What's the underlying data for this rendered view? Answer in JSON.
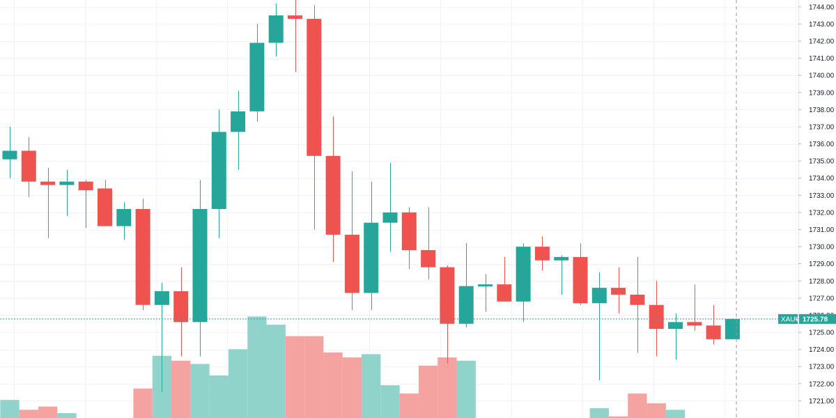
{
  "chart_data": {
    "type": "candlestick",
    "title": "",
    "symbol_tag": "XAUU",
    "last_price_label": "1725.78",
    "last_price": 1725.78,
    "ylim": [
      1720.0,
      1744.4
    ],
    "y_ticks": [
      "1721.00",
      "1722.00",
      "1723.00",
      "1724.00",
      "1725.00",
      "1726.00",
      "1727.00",
      "1728.00",
      "1729.00",
      "1730.00",
      "1731.00",
      "1732.00",
      "1733.00",
      "1734.00",
      "1735.00",
      "1736.00",
      "1737.00",
      "1738.00",
      "1739.00",
      "1740.00",
      "1741.00",
      "1742.00",
      "1743.00",
      "1744.00"
    ],
    "grid": true,
    "candles": [
      {
        "o": 1735.1,
        "h": 1737.0,
        "l": 1734.0,
        "c": 1735.6
      },
      {
        "o": 1735.6,
        "h": 1736.4,
        "l": 1732.9,
        "c": 1733.8
      },
      {
        "o": 1733.8,
        "h": 1734.6,
        "l": 1730.5,
        "c": 1733.6
      },
      {
        "o": 1733.6,
        "h": 1734.5,
        "l": 1731.8,
        "c": 1733.8
      },
      {
        "o": 1733.8,
        "h": 1733.9,
        "l": 1731.1,
        "c": 1733.3
      },
      {
        "o": 1733.4,
        "h": 1733.9,
        "l": 1731.2,
        "c": 1731.2
      },
      {
        "o": 1731.2,
        "h": 1732.6,
        "l": 1730.4,
        "c": 1732.2
      },
      {
        "o": 1732.2,
        "h": 1732.8,
        "l": 1726.3,
        "c": 1726.6
      },
      {
        "o": 1726.6,
        "h": 1727.9,
        "l": 1721.5,
        "c": 1727.4
      },
      {
        "o": 1727.4,
        "h": 1728.8,
        "l": 1723.6,
        "c": 1725.6
      },
      {
        "o": 1725.6,
        "h": 1733.9,
        "l": 1723.6,
        "c": 1732.2
      },
      {
        "o": 1732.2,
        "h": 1738.0,
        "l": 1730.5,
        "c": 1736.7
      },
      {
        "o": 1736.7,
        "h": 1739.1,
        "l": 1734.5,
        "c": 1737.9
      },
      {
        "o": 1737.9,
        "h": 1743.0,
        "l": 1737.3,
        "c": 1741.9
      },
      {
        "o": 1741.9,
        "h": 1744.2,
        "l": 1741.1,
        "c": 1743.5
      },
      {
        "o": 1743.5,
        "h": 1744.4,
        "l": 1740.2,
        "c": 1743.3
      },
      {
        "o": 1743.3,
        "h": 1744.1,
        "l": 1731.0,
        "c": 1735.3
      },
      {
        "o": 1735.3,
        "h": 1737.6,
        "l": 1729.1,
        "c": 1730.7
      },
      {
        "o": 1730.7,
        "h": 1734.4,
        "l": 1726.3,
        "c": 1727.3
      },
      {
        "o": 1727.3,
        "h": 1733.8,
        "l": 1726.3,
        "c": 1731.4
      },
      {
        "o": 1731.4,
        "h": 1734.9,
        "l": 1729.7,
        "c": 1732.0
      },
      {
        "o": 1732.0,
        "h": 1732.3,
        "l": 1728.7,
        "c": 1729.8
      },
      {
        "o": 1729.8,
        "h": 1732.3,
        "l": 1728.1,
        "c": 1728.8
      },
      {
        "o": 1728.8,
        "h": 1728.9,
        "l": 1723.2,
        "c": 1725.5
      },
      {
        "o": 1725.5,
        "h": 1730.2,
        "l": 1725.3,
        "c": 1727.7
      },
      {
        "o": 1727.7,
        "h": 1728.4,
        "l": 1726.2,
        "c": 1727.8
      },
      {
        "o": 1727.8,
        "h": 1729.4,
        "l": 1726.8,
        "c": 1726.8
      },
      {
        "o": 1726.8,
        "h": 1730.2,
        "l": 1725.6,
        "c": 1730.0
      },
      {
        "o": 1730.0,
        "h": 1730.6,
        "l": 1728.6,
        "c": 1729.2
      },
      {
        "o": 1729.2,
        "h": 1729.5,
        "l": 1727.2,
        "c": 1729.4
      },
      {
        "o": 1729.4,
        "h": 1730.2,
        "l": 1726.6,
        "c": 1726.7
      },
      {
        "o": 1726.7,
        "h": 1728.5,
        "l": 1722.2,
        "c": 1727.6
      },
      {
        "o": 1727.6,
        "h": 1728.8,
        "l": 1726.1,
        "c": 1727.2
      },
      {
        "o": 1727.2,
        "h": 1729.4,
        "l": 1723.8,
        "c": 1726.6
      },
      {
        "o": 1726.6,
        "h": 1728.0,
        "l": 1723.6,
        "c": 1725.2
      },
      {
        "o": 1725.2,
        "h": 1726.1,
        "l": 1723.4,
        "c": 1725.6
      },
      {
        "o": 1725.6,
        "h": 1727.8,
        "l": 1725.1,
        "c": 1725.4
      },
      {
        "o": 1725.4,
        "h": 1726.6,
        "l": 1724.3,
        "c": 1724.6
      },
      {
        "o": 1724.6,
        "h": 1725.8,
        "l": 1724.6,
        "c": 1725.78
      }
    ],
    "volume": [
      11,
      5,
      7,
      3,
      0,
      0,
      0,
      18,
      38,
      35,
      33,
      26,
      42,
      62,
      57,
      50,
      50,
      40,
      37,
      39,
      20,
      15,
      32,
      37,
      35,
      0,
      0,
      0,
      0,
      0,
      0,
      6,
      1,
      15,
      9,
      5,
      0,
      0,
      0
    ],
    "colors": {
      "up": "#26a69a",
      "down": "#ef5350",
      "volume_up": "#8fd3cb",
      "volume_down": "#f5a3a1",
      "grid": "#f0f3fa",
      "axis_text": "#131722",
      "price_line": "#26a69a"
    }
  }
}
